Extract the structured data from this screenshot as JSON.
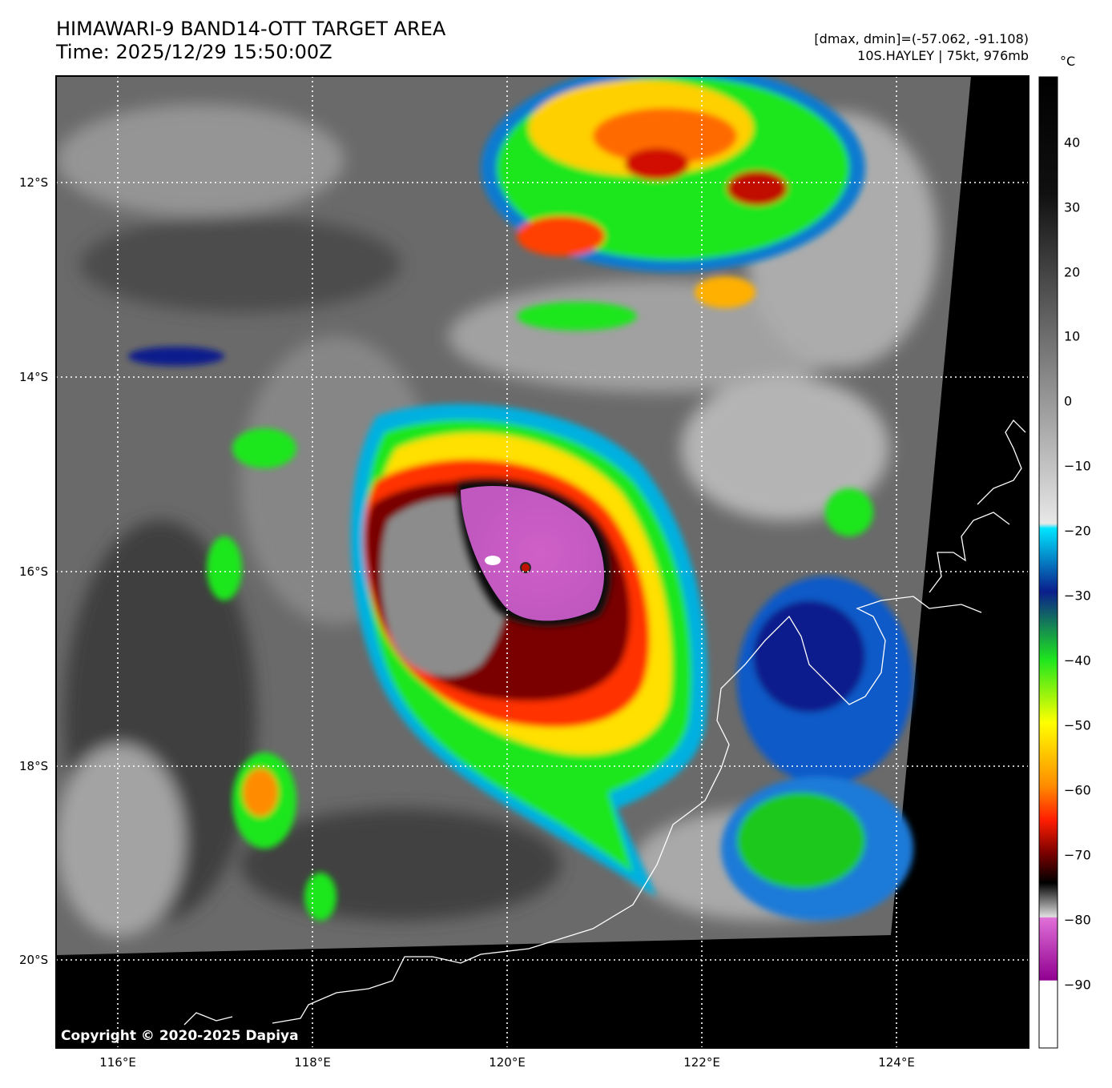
{
  "header": {
    "title_line1": "HIMAWARI-9 BAND14-OTT TARGET AREA",
    "title_line2": "Time: 2025/12/29 15:50:00Z",
    "dmax_dmin": "[dmax, dmin]=(-57.062, -91.108)",
    "storm_info": "10S.HAYLEY | 75kt, 976mb"
  },
  "map": {
    "lon_ticks": [
      "116°E",
      "118°E",
      "120°E",
      "122°E",
      "124°E"
    ],
    "lat_ticks": [
      "12°S",
      "14°S",
      "16°S",
      "18°S",
      "20°S"
    ],
    "gridlines": true,
    "gridline_style": "dotted white",
    "background_no_data_color": "#000000",
    "coastline_color": "#ffffff",
    "copyright": "Copyright © 2020-2025 Dapiya"
  },
  "colorbar": {
    "unit": "°C",
    "ticks": [
      "40",
      "30",
      "20",
      "10",
      "0",
      "−10",
      "−20",
      "−30",
      "−40",
      "−50",
      "−60",
      "−70",
      "−80",
      "−90"
    ],
    "colors": {
      "cyan": "#00e5ff",
      "blue": "#0a1e8c",
      "green": "#1ee61e",
      "yellow": "#ffff00",
      "orange": "#ff8c00",
      "red": "#ff1e00",
      "darkred": "#780000",
      "black": "#000000",
      "magenta": "#d060c8",
      "purple": "#900090",
      "white": "#ffffff"
    }
  }
}
